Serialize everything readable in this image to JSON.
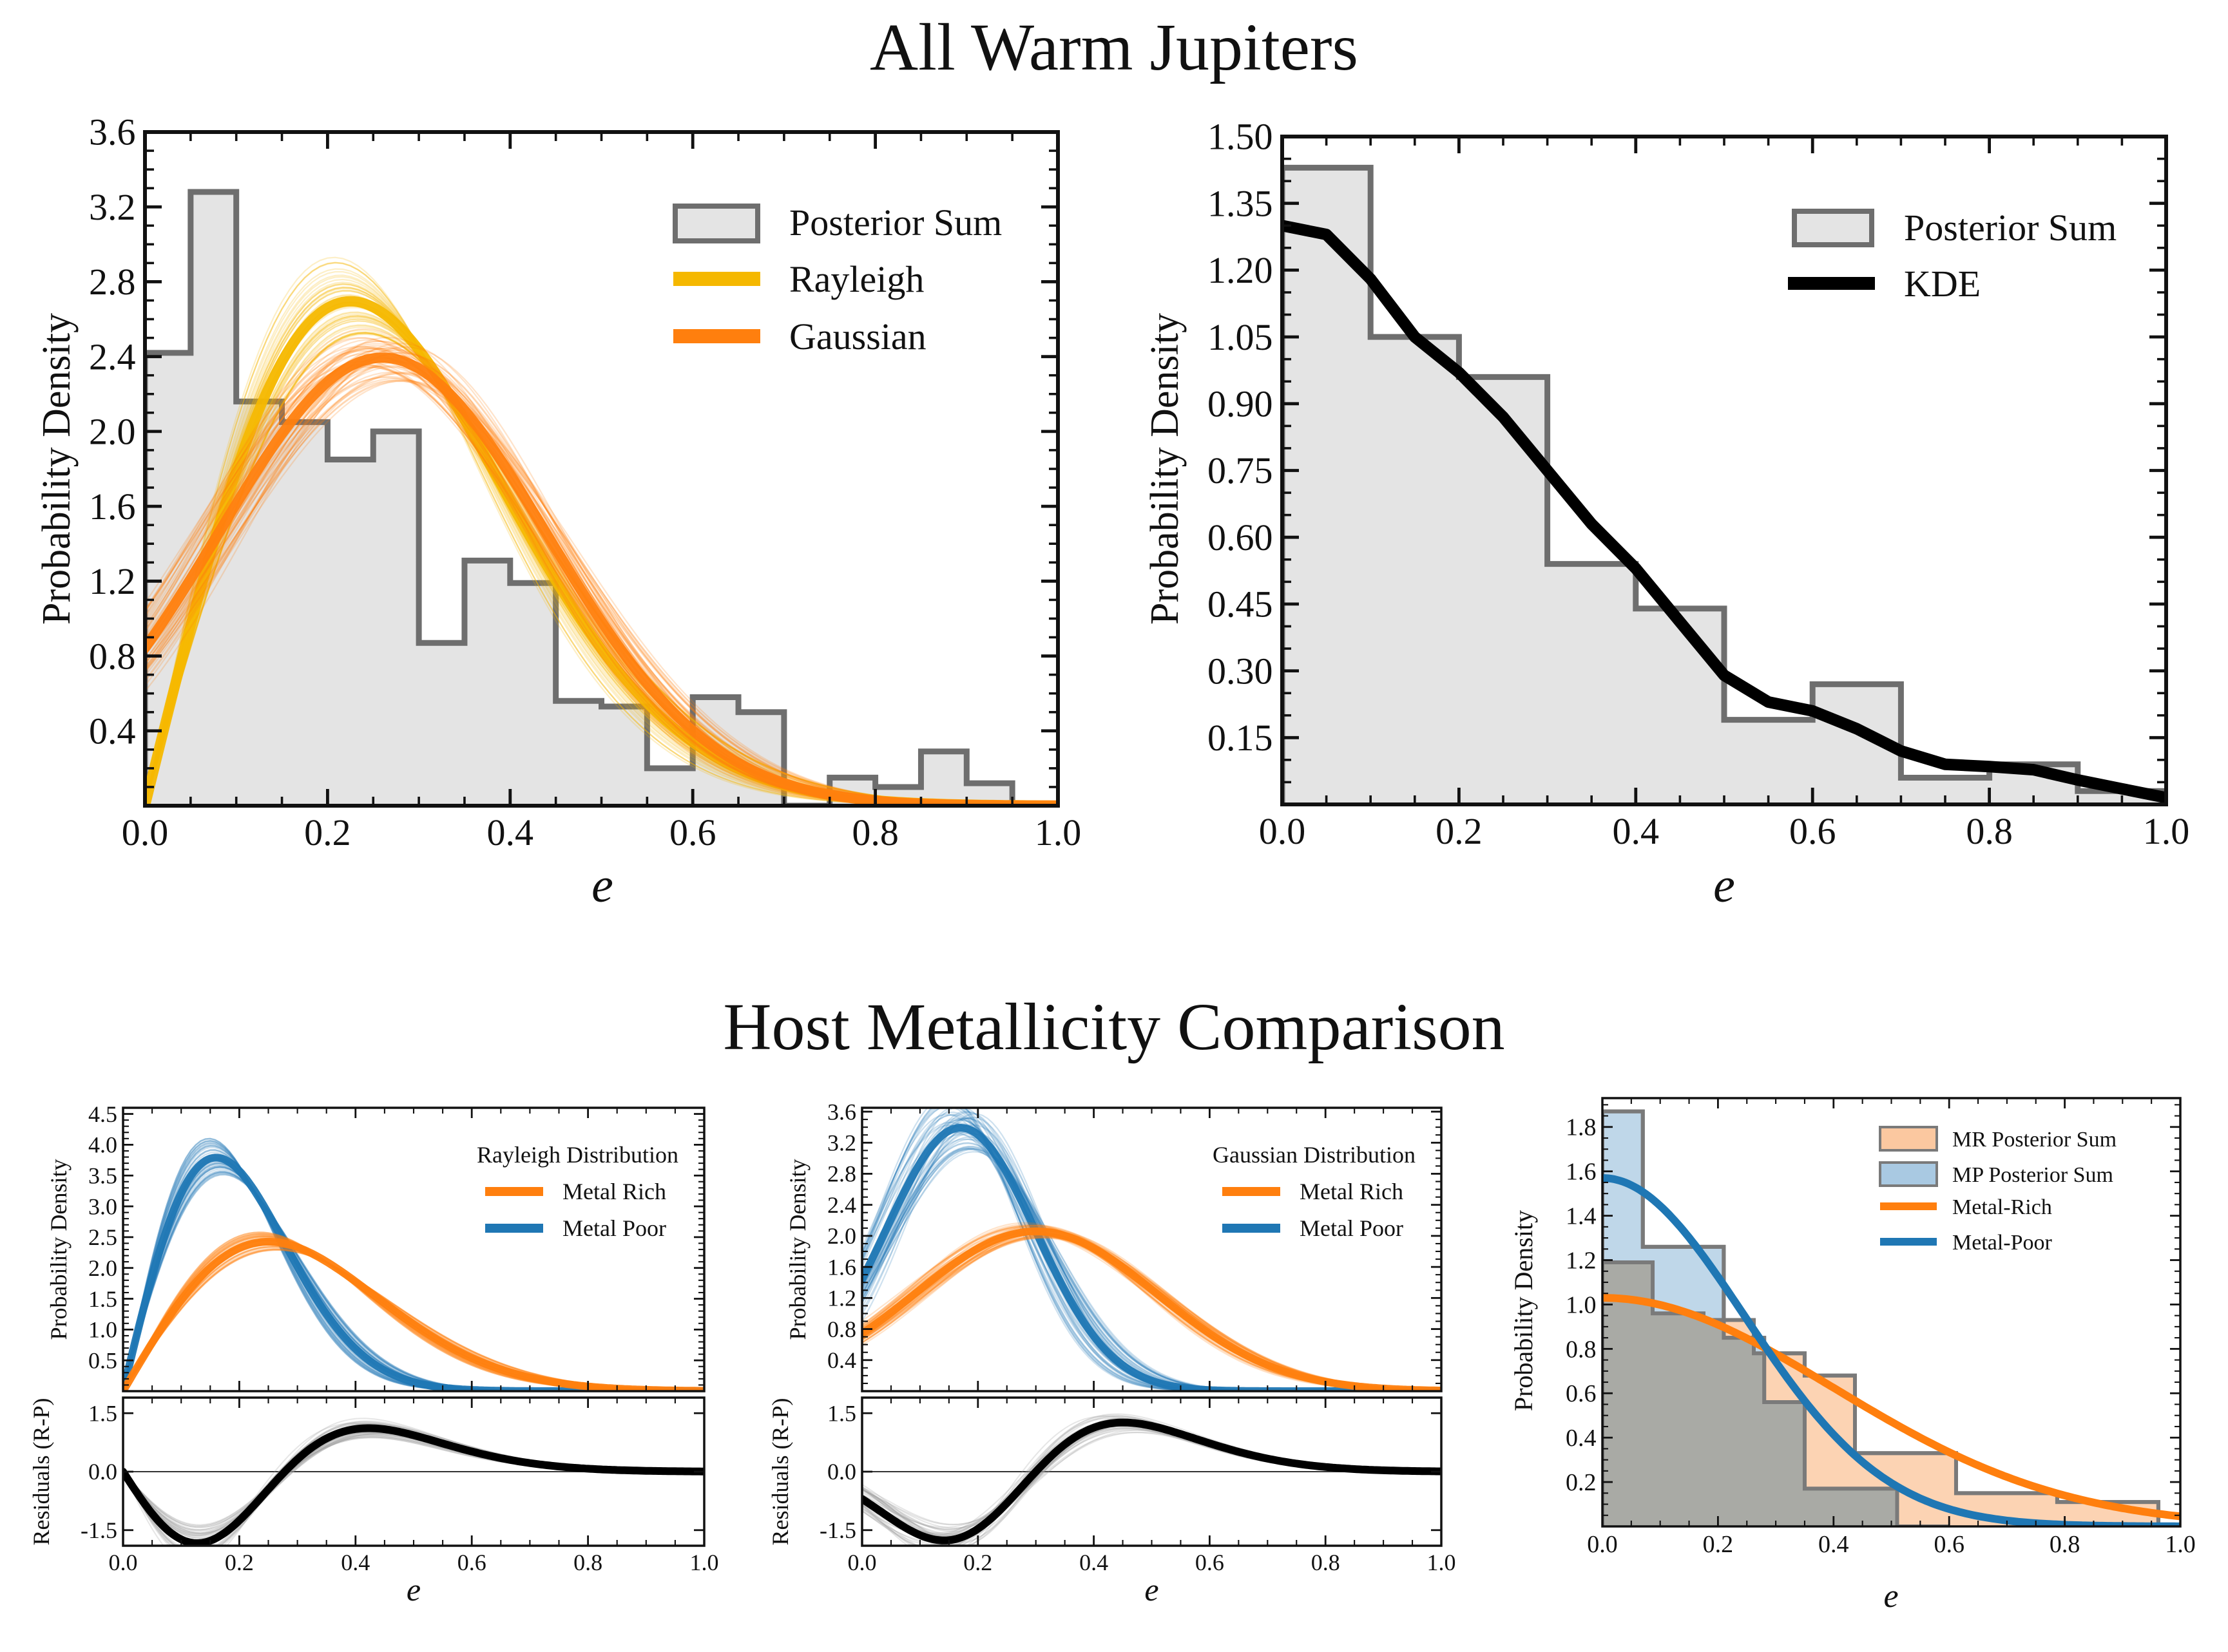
{
  "titles": {
    "top": "All Warm Jupiters",
    "bottom": "Host Metallicity Comparison"
  },
  "colors": {
    "hist_fill": "#e4e4e4",
    "hist_edge": "#6e6e6e",
    "rayleigh": "#f5b800",
    "gaussian": "#ff7f0e",
    "metal_rich": "#ff7f0e",
    "metal_poor": "#1f77b4",
    "kde": "#000000",
    "mr_fill": "#fbc8a0",
    "mp_fill": "#a9c9e2",
    "overlap_fill": "#a9aaa5"
  },
  "chart_data": [
    {
      "id": "top-left",
      "type": "bar",
      "title": "",
      "xlabel": "e",
      "ylabel": "Probability Density",
      "xlim": [
        0,
        1
      ],
      "ylim": [
        0,
        3.6
      ],
      "xticks": [
        0.0,
        0.2,
        0.4,
        0.6,
        0.8,
        1.0
      ],
      "xtick_labels": [
        "0.0",
        "0.2",
        "0.4",
        "0.6",
        "0.8",
        "1.0"
      ],
      "yticks": [
        0.4,
        0.8,
        1.2,
        1.6,
        2.0,
        2.4,
        2.8,
        3.2,
        3.6
      ],
      "ytick_labels": [
        "0.4",
        "0.8",
        "1.2",
        "1.6",
        "2.0",
        "2.4",
        "2.8",
        "3.2",
        "3.6"
      ],
      "legend": [
        "Posterior Sum",
        "Rayleigh",
        "Gaussian"
      ],
      "histogram": {
        "name": "Posterior Sum",
        "bin_edges": [
          0.0,
          0.05,
          0.1,
          0.15,
          0.2,
          0.25,
          0.3,
          0.35,
          0.4,
          0.45,
          0.5,
          0.55,
          0.6,
          0.65,
          0.7,
          0.75,
          0.8,
          0.85,
          0.9,
          0.95
        ],
        "values": [
          2.42,
          3.28,
          2.16,
          2.05,
          1.85,
          2.0,
          0.87,
          1.31,
          1.19,
          0.56,
          0.53,
          0.2,
          0.58,
          0.5,
          0.0,
          0.15,
          0.1,
          0.29,
          0.12
        ]
      },
      "curves": [
        {
          "name": "Rayleigh",
          "model": "rayleigh",
          "sigma": 0.225,
          "scale": 1.0,
          "spread": 0.08,
          "color_key": "rayleigh"
        },
        {
          "name": "Gaussian",
          "model": "halfgauss",
          "mu": 0.26,
          "sigma": 0.18,
          "norm": 1.0,
          "spread": 0.06,
          "color_key": "gaussian"
        }
      ]
    },
    {
      "id": "top-right",
      "type": "bar",
      "title": "",
      "xlabel": "e",
      "ylabel": "Probability Density",
      "xlim": [
        0,
        1
      ],
      "ylim": [
        0,
        1.5
      ],
      "xticks": [
        0.0,
        0.2,
        0.4,
        0.6,
        0.8,
        1.0
      ],
      "xtick_labels": [
        "0.0",
        "0.2",
        "0.4",
        "0.6",
        "0.8",
        "1.0"
      ],
      "yticks": [
        0.15,
        0.3,
        0.45,
        0.6,
        0.75,
        0.9,
        1.05,
        1.2,
        1.35,
        1.5
      ],
      "ytick_labels": [
        "0.15",
        "0.30",
        "0.45",
        "0.60",
        "0.75",
        "0.90",
        "1.05",
        "1.20",
        "1.35",
        "1.50"
      ],
      "legend": [
        "Posterior Sum",
        "KDE"
      ],
      "histogram": {
        "name": "Posterior Sum",
        "bin_edges": [
          0.0,
          0.1,
          0.2,
          0.3,
          0.4,
          0.5,
          0.6,
          0.7,
          0.8,
          0.9,
          1.0
        ],
        "values": [
          1.43,
          1.05,
          0.96,
          0.54,
          0.44,
          0.19,
          0.27,
          0.06,
          0.09,
          0.03
        ]
      },
      "kde": {
        "name": "KDE",
        "x": [
          0.0,
          0.05,
          0.1,
          0.15,
          0.2,
          0.25,
          0.3,
          0.35,
          0.4,
          0.45,
          0.5,
          0.55,
          0.6,
          0.65,
          0.7,
          0.75,
          0.8,
          0.85,
          0.9,
          0.95,
          1.0
        ],
        "y": [
          1.3,
          1.28,
          1.18,
          1.05,
          0.97,
          0.87,
          0.75,
          0.63,
          0.53,
          0.41,
          0.29,
          0.23,
          0.21,
          0.17,
          0.12,
          0.09,
          0.085,
          0.078,
          0.055,
          0.035,
          0.015
        ]
      }
    },
    {
      "id": "bottom-left",
      "type": "line",
      "title": "",
      "xlabel": "e",
      "ylabel": "Probability Density",
      "xlim": [
        0,
        1
      ],
      "ylim": [
        0,
        4.6
      ],
      "xticks": [
        0.0,
        0.2,
        0.4,
        0.6,
        0.8,
        1.0
      ],
      "xtick_labels": [
        "0.0",
        "0.2",
        "0.4",
        "0.6",
        "0.8",
        "1.0"
      ],
      "yticks": [
        0.5,
        1.0,
        1.5,
        2.0,
        2.5,
        3.0,
        3.5,
        4.0,
        4.5
      ],
      "ytick_labels": [
        "0.5",
        "1.0",
        "1.5",
        "2.0",
        "2.5",
        "3.0",
        "3.5",
        "4.0",
        "4.5"
      ],
      "legend_title": "Rayleigh Distribution",
      "legend": [
        "Metal Rich",
        "Metal Poor"
      ],
      "curves": [
        {
          "name": "Metal Rich",
          "model": "rayleigh",
          "sigma": 0.25,
          "scale": 1.0,
          "spread": 0.06,
          "color_key": "metal_rich"
        },
        {
          "name": "Metal Poor",
          "model": "rayleigh",
          "sigma": 0.16,
          "scale": 1.0,
          "spread": 0.08,
          "color_key": "metal_poor"
        }
      ],
      "residuals": {
        "ylabel": "Residuals (R-P)",
        "ylim": [
          -1.9,
          1.9
        ],
        "yticks": [
          -1.5,
          0.0,
          1.5
        ],
        "ytick_labels": [
          "-1.5",
          "0.0",
          "1.5"
        ]
      }
    },
    {
      "id": "bottom-middle",
      "type": "line",
      "title": "",
      "xlabel": "e",
      "ylabel": "Probability Density",
      "xlim": [
        0,
        1
      ],
      "ylim": [
        0,
        3.65
      ],
      "xticks": [
        0.0,
        0.2,
        0.4,
        0.6,
        0.8,
        1.0
      ],
      "xtick_labels": [
        "0.0",
        "0.2",
        "0.4",
        "0.6",
        "0.8",
        "1.0"
      ],
      "yticks": [
        0.4,
        0.8,
        1.2,
        1.6,
        2.0,
        2.4,
        2.8,
        3.2,
        3.6
      ],
      "ytick_labels": [
        "0.4",
        "0.8",
        "1.2",
        "1.6",
        "2.0",
        "2.4",
        "2.8",
        "3.2",
        "3.6"
      ],
      "legend_title": "Gaussian Distribution",
      "legend": [
        "Metal Rich",
        "Metal Poor"
      ],
      "curves": [
        {
          "name": "Metal Rich",
          "model": "halfgauss",
          "mu": 0.3,
          "sigma": 0.21,
          "norm": 1.0,
          "spread": 0.05,
          "color_key": "metal_rich"
        },
        {
          "name": "Metal Poor",
          "model": "halfgauss",
          "mu": 0.17,
          "sigma": 0.13,
          "norm": 1.0,
          "spread": 0.1,
          "color_key": "metal_poor"
        }
      ],
      "residuals": {
        "ylabel": "Residuals (R-P)",
        "ylim": [
          -1.9,
          1.9
        ],
        "yticks": [
          -1.5,
          0.0,
          1.5
        ],
        "ytick_labels": [
          "-1.5",
          "0.0",
          "1.5"
        ]
      }
    },
    {
      "id": "bottom-right",
      "type": "bar",
      "title": "",
      "xlabel": "e",
      "ylabel": "Probability Density",
      "xlim": [
        0,
        1
      ],
      "ylim": [
        0,
        1.93
      ],
      "xticks": [
        0.0,
        0.2,
        0.4,
        0.6,
        0.8,
        1.0
      ],
      "xtick_labels": [
        "0.0",
        "0.2",
        "0.4",
        "0.6",
        "0.8",
        "1.0"
      ],
      "yticks": [
        0.2,
        0.4,
        0.6,
        0.8,
        1.0,
        1.2,
        1.4,
        1.6,
        1.8
      ],
      "ytick_labels": [
        "0.2",
        "0.4",
        "0.6",
        "0.8",
        "1.0",
        "1.2",
        "1.4",
        "1.6",
        "1.8"
      ],
      "legend": [
        "MR Posterior Sum",
        "MP Posterior Sum",
        "Metal-Rich",
        "Metal-Poor"
      ],
      "histograms": [
        {
          "name": "MR Posterior Sum",
          "bin_edges": [
            0.0,
            0.087,
            0.175,
            0.262,
            0.35,
            0.437,
            0.525,
            0.612,
            0.7,
            0.787,
            0.875,
            0.962
          ],
          "values": [
            1.19,
            0.96,
            0.93,
            0.78,
            0.68,
            0.33,
            0.33,
            0.15,
            0.15,
            0.11,
            0.11
          ],
          "color_key": "mr_fill"
        },
        {
          "name": "MP Posterior Sum",
          "bin_edges": [
            0.0,
            0.07,
            0.14,
            0.21,
            0.28,
            0.35,
            0.42,
            0.51,
            0.6
          ],
          "values": [
            1.87,
            1.26,
            1.26,
            0.85,
            0.56,
            0.17,
            0.17,
            0.0
          ],
          "color_key": "mp_fill"
        }
      ],
      "curves": [
        {
          "name": "Metal-Rich",
          "model": "halfgauss",
          "mu": 0.0,
          "sigma": 0.4,
          "peak": 1.03,
          "spread": 0,
          "color_key": "metal_rich"
        },
        {
          "name": "Metal-Poor",
          "model": "halfgauss",
          "mu": 0.0,
          "sigma": 0.245,
          "peak": 1.57,
          "spread": 0,
          "color_key": "metal_poor"
        }
      ]
    }
  ]
}
